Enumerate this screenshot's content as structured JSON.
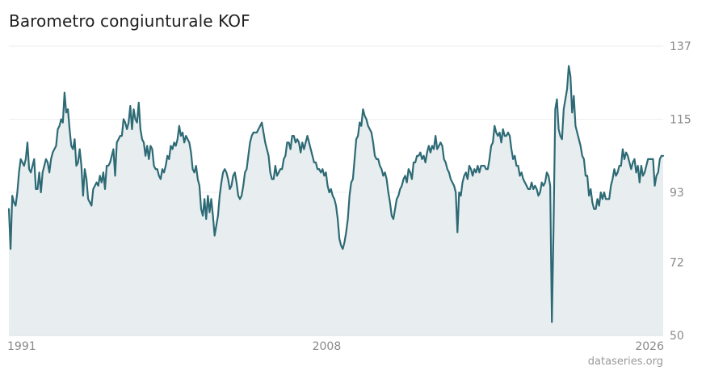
{
  "header": {
    "title": "Barometro congiunturale KOF"
  },
  "footer": {
    "source": "dataseries.org"
  },
  "colors": {
    "line": "#2d6a75",
    "area": "#e8eef0",
    "grid": "#eeeeee",
    "tick": "#8a8a8a"
  },
  "chart_data": {
    "type": "area",
    "title": "Barometro congiunturale KOF",
    "xlabel": "",
    "ylabel": "",
    "x_range": [
      1991.0,
      2026.0
    ],
    "ylim": [
      50,
      137
    ],
    "y_ticks": [
      137,
      115,
      93,
      72,
      50
    ],
    "x_ticks": [
      {
        "value": 1991,
        "label": "1991"
      },
      {
        "value": 2008,
        "label": "2008"
      },
      {
        "value": 2026,
        "label": "2026"
      }
    ],
    "grid": true,
    "frequency": "monthly",
    "series": [
      {
        "x_start": 1991.0,
        "x_step": 0.08333,
        "values": [
          88,
          76,
          92,
          90,
          89,
          93,
          99,
          103,
          102,
          101,
          103,
          108,
          100,
          99,
          101,
          103,
          94,
          94,
          99,
          93,
          99,
          101,
          103,
          102,
          99,
          103,
          105,
          106,
          107,
          112,
          113,
          115,
          114,
          123,
          117,
          118,
          112,
          107,
          106,
          109,
          101,
          102,
          106,
          101,
          92,
          100,
          97,
          91,
          90,
          89,
          94,
          95,
          96,
          95,
          98,
          96,
          99,
          94,
          101,
          101,
          102,
          104,
          106,
          98,
          108,
          109,
          110,
          110,
          115,
          114,
          112,
          114,
          119,
          112,
          118,
          115,
          114,
          120,
          112,
          109,
          108,
          104,
          107,
          103,
          107,
          106,
          101,
          100,
          100,
          98,
          97,
          100,
          99,
          101,
          104,
          103,
          107,
          106,
          108,
          107,
          109,
          113,
          110,
          111,
          108,
          110,
          109,
          108,
          105,
          100,
          99,
          101,
          97,
          95,
          88,
          86,
          91,
          85,
          92,
          87,
          91,
          86,
          80,
          83,
          86,
          92,
          96,
          99,
          100,
          99,
          97,
          94,
          95,
          98,
          99,
          96,
          92,
          91,
          92,
          95,
          99,
          100,
          104,
          108,
          110,
          111,
          111,
          111,
          112,
          113,
          114,
          111,
          108,
          106,
          104,
          99,
          97,
          97,
          101,
          98,
          99,
          100,
          100,
          103,
          104,
          108,
          108,
          106,
          110,
          110,
          108,
          109,
          108,
          105,
          108,
          106,
          108,
          110,
          108,
          106,
          104,
          102,
          102,
          100,
          100,
          99,
          100,
          98,
          99,
          95,
          93,
          94,
          92,
          91,
          89,
          85,
          79,
          77,
          76,
          78,
          81,
          85,
          92,
          96,
          97,
          103,
          109,
          110,
          114,
          113,
          118,
          116,
          115,
          113,
          112,
          111,
          108,
          104,
          103,
          103,
          101,
          100,
          98,
          99,
          97,
          93,
          90,
          86,
          85,
          88,
          91,
          92,
          94,
          95,
          97,
          98,
          96,
          100,
          99,
          97,
          102,
          102,
          104,
          104,
          105,
          103,
          104,
          102,
          105,
          107,
          105,
          107,
          106,
          110,
          106,
          107,
          108,
          107,
          103,
          102,
          100,
          99,
          97,
          96,
          95,
          93,
          81,
          93,
          92,
          96,
          98,
          99,
          97,
          101,
          100,
          98,
          100,
          99,
          101,
          99,
          101,
          101,
          101,
          100,
          100,
          103,
          107,
          108,
          113,
          111,
          110,
          111,
          108,
          112,
          110,
          110,
          111,
          110,
          106,
          103,
          104,
          101,
          101,
          98,
          99,
          97,
          96,
          95,
          94,
          94,
          96,
          94,
          95,
          94,
          92,
          93,
          96,
          95,
          96,
          99,
          98,
          95,
          54,
          83,
          118,
          121,
          112,
          110,
          109,
          118,
          121,
          124,
          131,
          128,
          117,
          122,
          113,
          111,
          109,
          107,
          104,
          103,
          98,
          98,
          92,
          94,
          90,
          88,
          88,
          91,
          89,
          93,
          91,
          93,
          91,
          91,
          91,
          95,
          97,
          100,
          98,
          99,
          101,
          101,
          106,
          103,
          105,
          104,
          102,
          100,
          102,
          103,
          99,
          101,
          96,
          101,
          98,
          99,
          101,
          103,
          103,
          103,
          103,
          95,
          98,
          99,
          103,
          104,
          104
        ]
      }
    ],
    "source": "dataseries.org"
  }
}
